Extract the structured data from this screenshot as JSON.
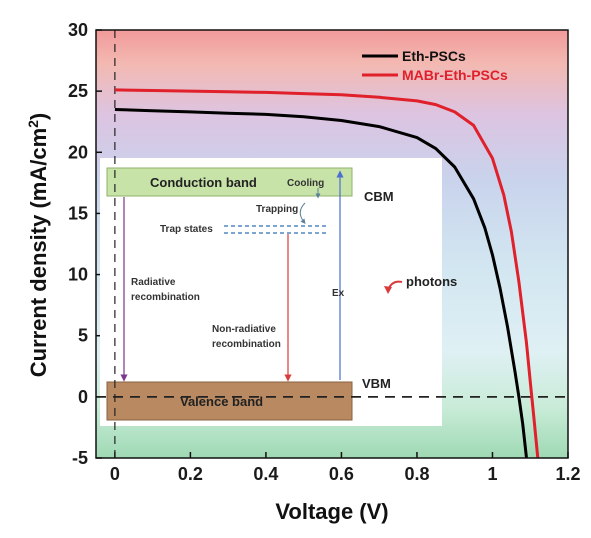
{
  "chart_data": {
    "type": "line",
    "xlabel": "Voltage (V)",
    "ylabel_main": "Current density (mA/cm",
    "ylabel_sup": "2",
    "ylabel_close": ")",
    "xlim": [
      -0.05,
      1.2
    ],
    "ylim": [
      -5,
      30
    ],
    "x_ticks": [
      "0",
      "0.2",
      "0.4",
      "0.6",
      "0.8",
      "1",
      "1.2"
    ],
    "x_tick_values": [
      0,
      0.2,
      0.4,
      0.6,
      0.8,
      1.0,
      1.2
    ],
    "y_ticks": [
      "-5",
      "0",
      "5",
      "10",
      "15",
      "20",
      "25",
      "30"
    ],
    "y_tick_values": [
      -5,
      0,
      5,
      10,
      15,
      20,
      25,
      30
    ],
    "reference_lines": {
      "x": 0,
      "y": 0
    },
    "legend_position": "top-right",
    "series": [
      {
        "name": "Eth-PSCs",
        "color": "#000000",
        "x": [
          0,
          0.1,
          0.2,
          0.3,
          0.4,
          0.5,
          0.6,
          0.7,
          0.8,
          0.85,
          0.9,
          0.95,
          0.98,
          1.0,
          1.02,
          1.04,
          1.06,
          1.07,
          1.08,
          1.09
        ],
        "y": [
          23.5,
          23.4,
          23.3,
          23.2,
          23.1,
          22.9,
          22.6,
          22.1,
          21.2,
          20.3,
          18.8,
          16.2,
          13.8,
          11.6,
          8.9,
          5.7,
          2.0,
          0.0,
          -2.2,
          -5.0
        ]
      },
      {
        "name": "MABr-Eth-PSCs",
        "color": "#e0202a",
        "x": [
          0,
          0.1,
          0.2,
          0.3,
          0.4,
          0.5,
          0.6,
          0.7,
          0.8,
          0.85,
          0.9,
          0.95,
          1.0,
          1.03,
          1.05,
          1.07,
          1.09,
          1.1,
          1.11,
          1.12
        ],
        "y": [
          25.1,
          25.05,
          25.0,
          24.95,
          24.9,
          24.8,
          24.7,
          24.5,
          24.2,
          23.9,
          23.3,
          22.2,
          19.5,
          16.5,
          13.5,
          9.4,
          4.4,
          1.3,
          -1.8,
          -5.0
        ]
      }
    ]
  },
  "inset": {
    "conduction_band": "Conduction band",
    "cooling": "Cooling",
    "cbm": "CBM",
    "trapping": "Trapping",
    "trap_states": "Trap states",
    "radiative_1": "Radiative",
    "radiative_2": "recombination",
    "ex": "Ex",
    "photons": "photons",
    "nonrad_1": "Non-radiative",
    "nonrad_2": "recombination",
    "vbm": "VBM",
    "valence_band": "Valence band"
  },
  "colors": {
    "eth": "#000000",
    "mabr": "#e0202a",
    "conduction_band_fill": "#c8e3a8",
    "valence_band_fill": "#b98a62",
    "trap_lines": "#2f6fb5",
    "radiative_arrow": "#7a3a8c",
    "nonrad_arrow": "#d93a3a",
    "ex_arrow": "#4a6fd0"
  }
}
